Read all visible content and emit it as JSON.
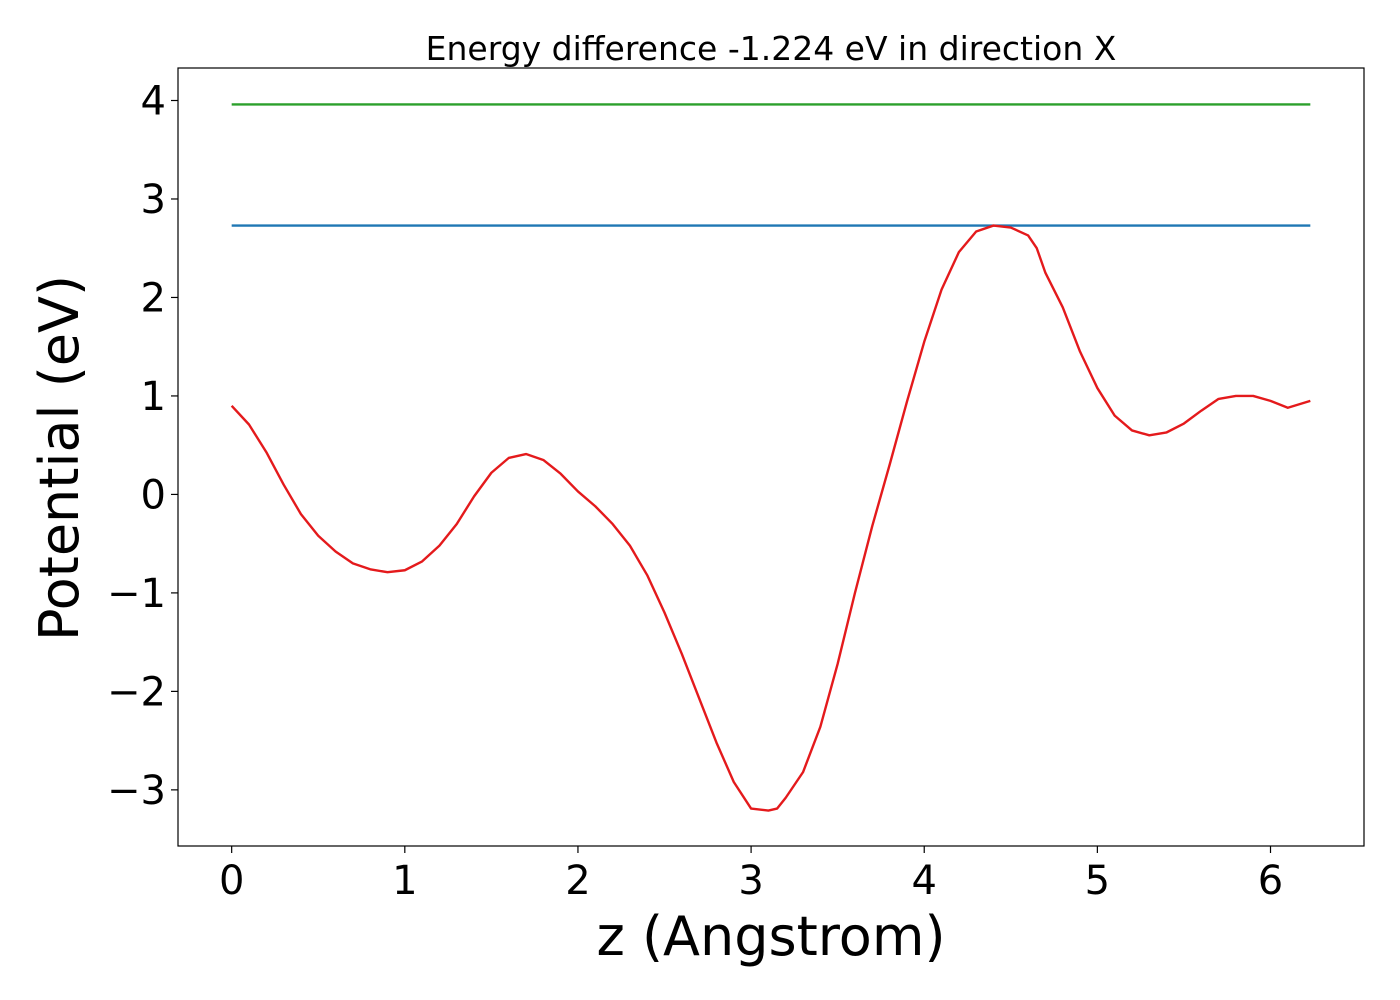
{
  "chart_data": {
    "type": "line",
    "title": "Energy difference -1.224 eV in direction X",
    "xlabel": "z (Angstrom)",
    "ylabel": "Potential (eV)",
    "xlim": [
      -0.31,
      6.54
    ],
    "ylim": [
      -3.57,
      4.33
    ],
    "xticks": [
      0,
      1,
      2,
      3,
      4,
      5,
      6
    ],
    "yticks": [
      -3,
      -2,
      -1,
      0,
      1,
      2,
      3,
      4
    ],
    "ytick_labels": [
      "−3",
      "−2",
      "−1",
      "0",
      "1",
      "2",
      "3",
      "4"
    ],
    "grid": false,
    "series": [
      {
        "color": "#2ca02c",
        "x": [
          0,
          6.23
        ],
        "y": [
          3.96,
          3.96
        ]
      },
      {
        "color": "#1f77b4",
        "x": [
          0,
          6.23
        ],
        "y": [
          2.73,
          2.73
        ]
      },
      {
        "color": "#e41a1c",
        "x": [
          0,
          0.1,
          0.2,
          0.3,
          0.4,
          0.5,
          0.6,
          0.7,
          0.8,
          0.9,
          1.0,
          1.1,
          1.2,
          1.3,
          1.4,
          1.5,
          1.6,
          1.7,
          1.8,
          1.9,
          2.0,
          2.1,
          2.2,
          2.3,
          2.4,
          2.5,
          2.6,
          2.7,
          2.8,
          2.9,
          3.0,
          3.1,
          3.15,
          3.2,
          3.3,
          3.4,
          3.5,
          3.6,
          3.7,
          3.8,
          3.9,
          4.0,
          4.1,
          4.2,
          4.3,
          4.4,
          4.5,
          4.6,
          4.65,
          4.7,
          4.8,
          4.9,
          5.0,
          5.1,
          5.2,
          5.3,
          5.4,
          5.5,
          5.6,
          5.7,
          5.8,
          5.9,
          6.0,
          6.1,
          6.23
        ],
        "y": [
          0.9,
          0.71,
          0.43,
          0.1,
          -0.2,
          -0.42,
          -0.58,
          -0.7,
          -0.76,
          -0.79,
          -0.77,
          -0.68,
          -0.52,
          -0.3,
          -0.02,
          0.22,
          0.37,
          0.41,
          0.35,
          0.21,
          0.03,
          -0.12,
          -0.3,
          -0.52,
          -0.82,
          -1.2,
          -1.62,
          -2.07,
          -2.52,
          -2.92,
          -3.19,
          -3.21,
          -3.19,
          -3.08,
          -2.82,
          -2.36,
          -1.72,
          -1.0,
          -0.32,
          0.3,
          0.94,
          1.55,
          2.08,
          2.46,
          2.67,
          2.73,
          2.71,
          2.63,
          2.5,
          2.25,
          1.9,
          1.45,
          1.08,
          0.8,
          0.65,
          0.6,
          0.63,
          0.72,
          0.85,
          0.97,
          1.0,
          1.0,
          0.95,
          0.88,
          0.95
        ]
      }
    ]
  }
}
